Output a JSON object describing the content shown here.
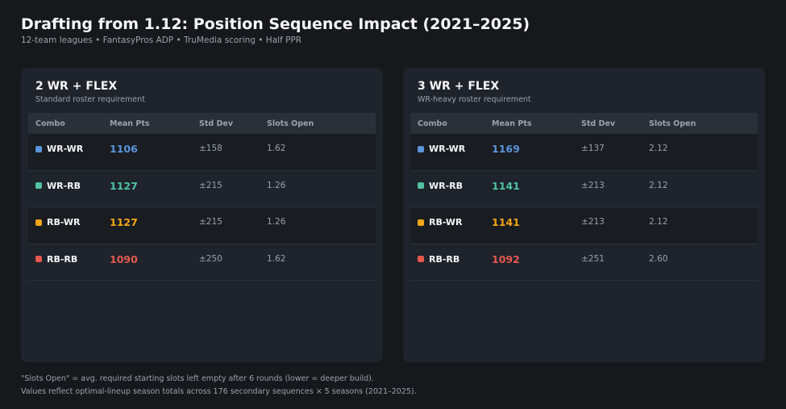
{
  "title": "Drafting from 1.12: Position Sequence Impact (2021–2025)",
  "subtitle": "12-team leagues  •  FantasyPros ADP  •  TruMedia scoring  •  Half PPR",
  "colors": {
    "WR-WR": "#5b95db",
    "WR-RB": "#4fc3a1",
    "RB-WR": "#f2a516",
    "RB-RB": "#e5574f"
  },
  "columns": [
    "Combo",
    "Mean Pts",
    "Std Dev",
    "Slots Open"
  ],
  "chart_data": [
    {
      "type": "table",
      "title": "2 WR + FLEX",
      "subtitle": "Standard roster requirement",
      "columns": [
        "Combo",
        "Mean Pts",
        "Std Dev",
        "Slots Open"
      ],
      "rows": [
        {
          "combo": "WR-WR",
          "mean": "1106",
          "std": "±158",
          "slots": "1.62",
          "color": "#5b95db"
        },
        {
          "combo": "WR-RB",
          "mean": "1127",
          "std": "±215",
          "slots": "1.26",
          "color": "#4fc3a1"
        },
        {
          "combo": "RB-WR",
          "mean": "1127",
          "std": "±215",
          "slots": "1.26",
          "color": "#f2a516"
        },
        {
          "combo": "RB-RB",
          "mean": "1090",
          "std": "±250",
          "slots": "1.62",
          "color": "#e5574f"
        }
      ]
    },
    {
      "type": "table",
      "title": "3 WR + FLEX",
      "subtitle": "WR-heavy roster requirement",
      "columns": [
        "Combo",
        "Mean Pts",
        "Std Dev",
        "Slots Open"
      ],
      "rows": [
        {
          "combo": "WR-WR",
          "mean": "1169",
          "std": "±137",
          "slots": "2.12",
          "color": "#5b95db"
        },
        {
          "combo": "WR-RB",
          "mean": "1141",
          "std": "±213",
          "slots": "2.12",
          "color": "#4fc3a1"
        },
        {
          "combo": "RB-WR",
          "mean": "1141",
          "std": "±213",
          "slots": "2.12",
          "color": "#f2a516"
        },
        {
          "combo": "RB-RB",
          "mean": "1092",
          "std": "±251",
          "slots": "2.60",
          "color": "#e5574f"
        }
      ]
    }
  ],
  "footnotes": [
    "\"Slots Open\" = avg. required starting slots left empty after 6 rounds (lower = deeper build).",
    "Values reflect optimal-lineup season totals across 176 secondary sequences × 5 seasons (2021–2025)."
  ]
}
